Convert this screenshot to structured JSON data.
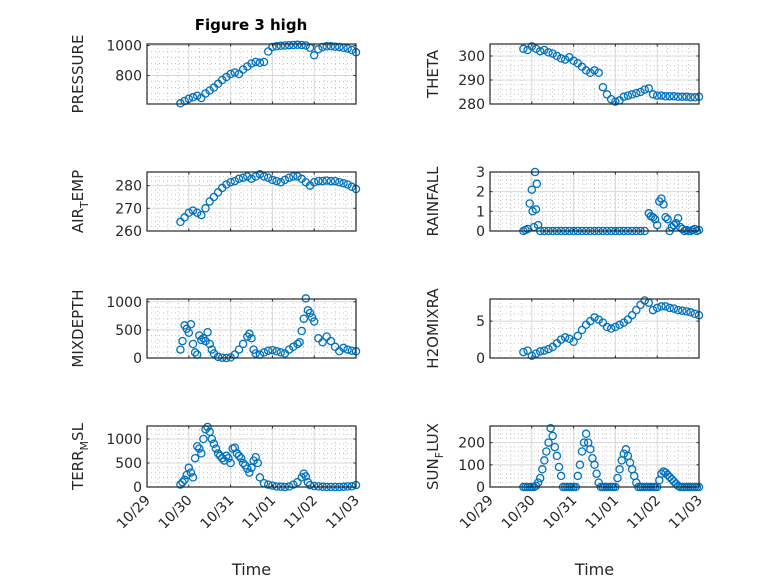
{
  "figure_title": "Figure 3 high",
  "marker_color": "#0072BD",
  "chart_data": [
    {
      "type": "scatter",
      "panel": "top-left",
      "title": "Figure 3 high",
      "ylabel": "PRESSURE",
      "ylabel_sub": null,
      "xlabel": "",
      "xlim_days": [
        0,
        5
      ],
      "ylim": [
        610,
        1010
      ],
      "yticks": [
        800,
        1000
      ],
      "yticklabels": [
        "800",
        "1000"
      ],
      "xticklabels": [],
      "grid": true,
      "x_days": [
        0.8,
        0.9,
        1.0,
        1.1,
        1.2,
        1.3,
        1.4,
        1.5,
        1.6,
        1.7,
        1.8,
        1.9,
        2.0,
        2.1,
        2.2,
        2.3,
        2.4,
        2.5,
        2.6,
        2.7,
        2.8,
        2.9,
        3.0,
        3.1,
        3.2,
        3.3,
        3.4,
        3.5,
        3.6,
        3.7,
        3.8,
        3.9,
        4.0,
        4.1,
        4.2,
        4.3,
        4.4,
        4.5,
        4.6,
        4.7,
        4.8,
        4.9,
        5.0
      ],
      "values": [
        615,
        630,
        645,
        655,
        665,
        650,
        680,
        700,
        720,
        745,
        770,
        790,
        810,
        820,
        810,
        840,
        860,
        880,
        890,
        885,
        890,
        960,
        990,
        995,
        998,
        1000,
        1002,
        1003,
        1005,
        1003,
        1000,
        985,
        935,
        975,
        990,
        995,
        995,
        992,
        990,
        985,
        980,
        970,
        955
      ]
    },
    {
      "type": "scatter",
      "panel": "top-right",
      "ylabel": "THETA",
      "ylabel_sub": null,
      "xlabel": "",
      "xlim_days": [
        0,
        5
      ],
      "ylim": [
        280,
        305
      ],
      "yticks": [
        280,
        290,
        300
      ],
      "yticklabels": [
        "280",
        "290",
        "300"
      ],
      "xticklabels": [],
      "grid": true,
      "x_days": [
        0.8,
        0.9,
        1.0,
        1.1,
        1.2,
        1.3,
        1.4,
        1.5,
        1.6,
        1.7,
        1.8,
        1.9,
        2.0,
        2.1,
        2.2,
        2.3,
        2.4,
        2.5,
        2.6,
        2.7,
        2.8,
        2.9,
        3.0,
        3.1,
        3.2,
        3.3,
        3.4,
        3.5,
        3.6,
        3.7,
        3.8,
        3.9,
        4.0,
        4.1,
        4.2,
        4.3,
        4.4,
        4.5,
        4.6,
        4.7,
        4.8,
        4.9,
        5.0
      ],
      "values": [
        303,
        302.5,
        304,
        303,
        302,
        302.5,
        301.5,
        301,
        300,
        299,
        298.5,
        299.5,
        298,
        297,
        295.5,
        294,
        293,
        294,
        293,
        287,
        284,
        282,
        281,
        281.5,
        283,
        283.5,
        284,
        284.5,
        285,
        286,
        286.5,
        284,
        283.5,
        283.5,
        283.2,
        283.2,
        283.2,
        283,
        283,
        283,
        282.8,
        282.8,
        283
      ]
    },
    {
      "type": "scatter",
      "panel": "row2-left",
      "ylabel": "AIR",
      "ylabel_sub": "T",
      "ylabel_rest": "EMP",
      "xlabel": "",
      "xlim_days": [
        0,
        5
      ],
      "ylim": [
        260,
        286
      ],
      "yticks": [
        260,
        270,
        280
      ],
      "yticklabels": [
        "260",
        "270",
        "280"
      ],
      "xticklabels": [],
      "grid": true,
      "x_days": [
        0.8,
        0.9,
        1.0,
        1.1,
        1.2,
        1.3,
        1.4,
        1.5,
        1.6,
        1.7,
        1.8,
        1.9,
        2.0,
        2.1,
        2.2,
        2.3,
        2.4,
        2.5,
        2.6,
        2.7,
        2.8,
        2.9,
        3.0,
        3.1,
        3.2,
        3.3,
        3.4,
        3.5,
        3.6,
        3.7,
        3.8,
        3.9,
        4.0,
        4.1,
        4.2,
        4.3,
        4.4,
        4.5,
        4.6,
        4.7,
        4.8,
        4.9,
        5.0
      ],
      "values": [
        264,
        266,
        268,
        269,
        268,
        267,
        270,
        273,
        275,
        277,
        279,
        280.5,
        281.5,
        282,
        283,
        283.5,
        284,
        283,
        284,
        285,
        284,
        283.5,
        282.5,
        282,
        281.5,
        282.5,
        283.5,
        284,
        284,
        283,
        281.5,
        280,
        281.5,
        282,
        282,
        282.2,
        282,
        282,
        281.5,
        281,
        280.5,
        279.5,
        278.5
      ]
    },
    {
      "type": "scatter",
      "panel": "row2-right",
      "ylabel": "RAINFALL",
      "ylabel_sub": null,
      "xlabel": "",
      "xlim_days": [
        0,
        5
      ],
      "ylim": [
        0,
        3
      ],
      "yticks": [
        0,
        1,
        2,
        3
      ],
      "yticklabels": [
        "0",
        "1",
        "2",
        "3"
      ],
      "xticklabels": [],
      "grid": true,
      "x_days": [
        0.8,
        0.85,
        0.9,
        0.95,
        1.0,
        1.02,
        1.05,
        1.08,
        1.1,
        1.12,
        1.15,
        1.2,
        1.3,
        1.4,
        1.5,
        1.6,
        1.7,
        1.8,
        1.9,
        2.0,
        2.1,
        2.2,
        2.3,
        2.4,
        2.5,
        2.6,
        2.7,
        2.8,
        2.9,
        3.0,
        3.1,
        3.2,
        3.3,
        3.4,
        3.5,
        3.6,
        3.7,
        3.8,
        3.85,
        3.9,
        3.95,
        4.0,
        4.05,
        4.1,
        4.15,
        4.2,
        4.25,
        4.3,
        4.35,
        4.4,
        4.45,
        4.5,
        4.55,
        4.6,
        4.65,
        4.7,
        4.75,
        4.8,
        4.85,
        4.9,
        4.95,
        5.0
      ],
      "values": [
        0,
        0.05,
        0.1,
        1.4,
        2.1,
        1.0,
        0.2,
        3.0,
        1.1,
        2.4,
        0.3,
        0,
        0,
        0,
        0,
        0,
        0,
        0,
        0,
        0,
        0,
        0,
        0,
        0,
        0,
        0,
        0,
        0,
        0,
        0,
        0,
        0,
        0,
        0,
        0,
        0,
        0,
        0.9,
        0.75,
        0.7,
        0.6,
        0.3,
        1.5,
        1.65,
        1.35,
        0.7,
        0.6,
        0,
        0.2,
        0.3,
        0.4,
        0.65,
        0.2,
        0.1,
        0,
        0.05,
        0,
        0,
        0.05,
        0.1,
        0,
        0.05
      ]
    },
    {
      "type": "scatter",
      "panel": "row3-left",
      "ylabel": "MIXDEPTH",
      "ylabel_sub": null,
      "xlabel": "",
      "xlim_days": [
        0,
        5
      ],
      "ylim": [
        0,
        1050
      ],
      "yticks": [
        0,
        500,
        1000
      ],
      "yticklabels": [
        "0",
        "500",
        "1000"
      ],
      "xticklabels": [],
      "grid": true,
      "x_days": [
        0.8,
        0.85,
        0.9,
        0.95,
        1.0,
        1.05,
        1.1,
        1.15,
        1.2,
        1.25,
        1.3,
        1.35,
        1.4,
        1.45,
        1.5,
        1.55,
        1.6,
        1.7,
        1.8,
        1.9,
        2.0,
        2.1,
        2.2,
        2.3,
        2.4,
        2.45,
        2.5,
        2.55,
        2.6,
        2.7,
        2.8,
        2.9,
        3.0,
        3.1,
        3.2,
        3.3,
        3.4,
        3.5,
        3.6,
        3.65,
        3.7,
        3.75,
        3.8,
        3.85,
        3.9,
        3.95,
        4.0,
        4.1,
        4.2,
        4.3,
        4.4,
        4.5,
        4.6,
        4.7,
        4.8,
        4.9,
        5.0
      ],
      "values": [
        150,
        300,
        580,
        520,
        450,
        600,
        250,
        100,
        60,
        400,
        320,
        350,
        300,
        460,
        250,
        150,
        80,
        20,
        5,
        0,
        10,
        60,
        150,
        250,
        380,
        430,
        350,
        150,
        80,
        60,
        100,
        130,
        140,
        120,
        100,
        80,
        150,
        200,
        250,
        280,
        480,
        700,
        1060,
        850,
        800,
        720,
        650,
        350,
        280,
        380,
        300,
        200,
        120,
        180,
        150,
        130,
        120
      ]
    },
    {
      "type": "scatter",
      "panel": "row3-right",
      "ylabel": "H2OMIXRA",
      "ylabel_sub": null,
      "xlabel": "",
      "xlim_days": [
        0,
        5
      ],
      "ylim": [
        0,
        8
      ],
      "yticks": [
        0,
        5
      ],
      "yticklabels": [
        "0",
        "5"
      ],
      "xticklabels": [],
      "grid": true,
      "x_days": [
        0.8,
        0.9,
        1.0,
        1.1,
        1.2,
        1.3,
        1.4,
        1.5,
        1.6,
        1.7,
        1.8,
        1.9,
        2.0,
        2.1,
        2.2,
        2.3,
        2.4,
        2.5,
        2.6,
        2.7,
        2.8,
        2.9,
        3.0,
        3.1,
        3.2,
        3.3,
        3.4,
        3.5,
        3.6,
        3.7,
        3.8,
        3.9,
        4.0,
        4.1,
        4.2,
        4.3,
        4.4,
        4.5,
        4.6,
        4.7,
        4.8,
        4.9,
        5.0
      ],
      "values": [
        0.8,
        1.0,
        0.3,
        0.6,
        0.9,
        1.0,
        1.2,
        1.5,
        2.0,
        2.5,
        2.8,
        2.6,
        2.2,
        3.0,
        3.8,
        4.5,
        5.0,
        5.5,
        5.2,
        4.8,
        4.2,
        4.0,
        4.2,
        4.5,
        4.8,
        5.2,
        5.8,
        6.5,
        7.2,
        7.8,
        7.5,
        6.5,
        6.8,
        7.0,
        7.0,
        6.8,
        6.7,
        6.5,
        6.4,
        6.3,
        6.2,
        6.0,
        5.8
      ]
    },
    {
      "type": "scatter",
      "panel": "row4-left",
      "ylabel": "TERR",
      "ylabel_sub": "M",
      "ylabel_rest": "SL",
      "xlabel": "Time",
      "xlim_days": [
        0,
        5
      ],
      "ylim": [
        0,
        1270
      ],
      "yticks": [
        0,
        500,
        1000
      ],
      "yticklabels": [
        "0",
        "500",
        "1000"
      ],
      "xticklabels": [
        "10/29",
        "10/30",
        "10/31",
        "11/01",
        "11/02",
        "11/03"
      ],
      "grid": true,
      "x_days": [
        0.8,
        0.85,
        0.9,
        0.95,
        1.0,
        1.05,
        1.1,
        1.15,
        1.2,
        1.25,
        1.3,
        1.35,
        1.4,
        1.45,
        1.5,
        1.55,
        1.6,
        1.65,
        1.7,
        1.75,
        1.8,
        1.85,
        1.9,
        1.95,
        2.0,
        2.05,
        2.1,
        2.15,
        2.2,
        2.25,
        2.3,
        2.35,
        2.4,
        2.45,
        2.5,
        2.55,
        2.6,
        2.65,
        2.7,
        2.8,
        2.9,
        3.0,
        3.1,
        3.2,
        3.3,
        3.4,
        3.5,
        3.6,
        3.7,
        3.75,
        3.8,
        3.85,
        3.9,
        4.0,
        4.1,
        4.2,
        4.3,
        4.4,
        4.5,
        4.6,
        4.7,
        4.8,
        4.9,
        5.0
      ],
      "values": [
        50,
        100,
        150,
        250,
        400,
        300,
        200,
        600,
        850,
        800,
        700,
        1000,
        1200,
        1250,
        1150,
        1000,
        900,
        800,
        700,
        650,
        600,
        550,
        650,
        600,
        500,
        800,
        820,
        700,
        650,
        600,
        500,
        450,
        380,
        300,
        400,
        550,
        620,
        500,
        200,
        80,
        50,
        30,
        10,
        5,
        0,
        10,
        50,
        100,
        200,
        280,
        220,
        100,
        40,
        20,
        10,
        5,
        0,
        0,
        0,
        0,
        5,
        10,
        15,
        40
      ]
    },
    {
      "type": "scatter",
      "panel": "row4-right",
      "ylabel": "SUN",
      "ylabel_sub": "F",
      "ylabel_rest": "LUX",
      "xlabel": "Time",
      "xlim_days": [
        0,
        5
      ],
      "ylim": [
        0,
        275
      ],
      "yticks": [
        0,
        100,
        200
      ],
      "yticklabels": [
        "0",
        "100",
        "200"
      ],
      "xticklabels": [
        "10/29",
        "10/30",
        "10/31",
        "11/01",
        "11/02",
        "11/03"
      ],
      "grid": true,
      "x_days": [
        0.8,
        0.85,
        0.9,
        0.95,
        1.0,
        1.05,
        1.1,
        1.15,
        1.2,
        1.25,
        1.3,
        1.35,
        1.4,
        1.45,
        1.5,
        1.55,
        1.6,
        1.65,
        1.7,
        1.75,
        1.8,
        1.85,
        1.9,
        1.95,
        2.0,
        2.05,
        2.1,
        2.15,
        2.2,
        2.25,
        2.3,
        2.35,
        2.4,
        2.45,
        2.5,
        2.55,
        2.6,
        2.65,
        2.7,
        2.75,
        2.8,
        2.85,
        2.9,
        2.95,
        3.0,
        3.05,
        3.1,
        3.15,
        3.2,
        3.25,
        3.3,
        3.35,
        3.4,
        3.45,
        3.5,
        3.55,
        3.6,
        3.65,
        3.7,
        3.75,
        3.8,
        3.85,
        3.9,
        3.95,
        4.0,
        4.05,
        4.1,
        4.15,
        4.2,
        4.25,
        4.3,
        4.35,
        4.4,
        4.45,
        4.5,
        4.55,
        4.6,
        4.65,
        4.7,
        4.75,
        4.8,
        4.85,
        4.9,
        4.95,
        5.0
      ],
      "values": [
        0,
        0,
        0,
        0,
        0,
        0,
        5,
        20,
        40,
        80,
        120,
        160,
        200,
        265,
        230,
        180,
        140,
        90,
        50,
        0,
        0,
        0,
        0,
        0,
        0,
        0,
        50,
        100,
        160,
        200,
        240,
        200,
        170,
        130,
        100,
        60,
        20,
        0,
        0,
        0,
        0,
        0,
        0,
        0,
        0,
        40,
        80,
        120,
        150,
        170,
        140,
        110,
        80,
        50,
        20,
        0,
        0,
        0,
        0,
        0,
        0,
        0,
        0,
        0,
        0,
        30,
        60,
        70,
        65,
        55,
        45,
        35,
        25,
        15,
        5,
        0,
        0,
        0,
        0,
        0,
        0,
        0,
        0,
        0,
        0
      ]
    }
  ]
}
